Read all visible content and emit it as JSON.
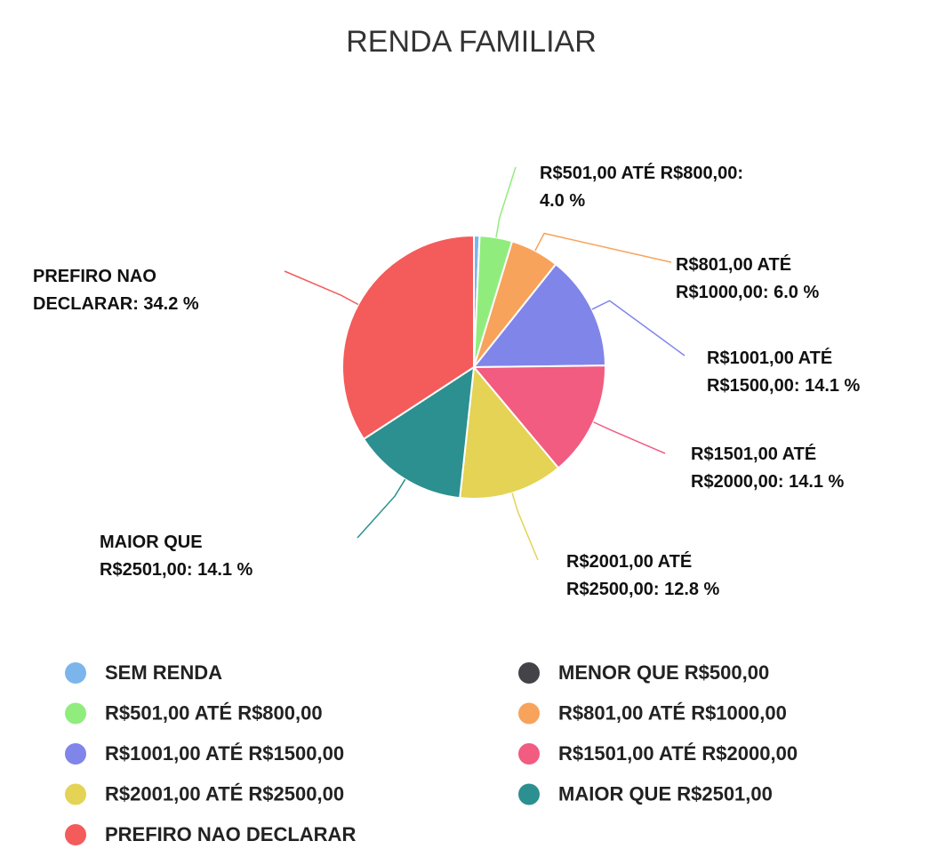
{
  "chart_data": {
    "type": "pie",
    "title": "RENDA FAMILIAR",
    "categories": [
      "SEM RENDA",
      "MENOR QUE R$500,00",
      "R$501,00 ATÉ R$800,00",
      "R$801,00 ATÉ R$1000,00",
      "R$1001,00 ATÉ R$1500,00",
      "R$1501,00 ATÉ R$2000,00",
      "R$2001,00 ATÉ R$2500,00",
      "MAIOR QUE R$2501,00",
      "PREFIRO NAO DECLARAR"
    ],
    "values": [
      0.7,
      0,
      4.0,
      6.0,
      14.1,
      14.1,
      12.8,
      14.1,
      34.2
    ],
    "value_labels": [
      null,
      null,
      "R$501,00 ATÉ R$800,00: 4.0 %",
      "R$801,00 ATÉ R$1000,00: 6.0 %",
      "R$1001,00 ATÉ R$1500,00: 14.1 %",
      "R$1501,00 ATÉ R$2000,00: 14.1 %",
      "R$2001,00 ATÉ R$2500,00: 12.8 %",
      "MAIOR QUE R$2501,00: 14.1 %",
      "PREFIRO NAO DECLARAR: 34.2 %"
    ],
    "colors": [
      "#7cb5ec",
      "#434348",
      "#90ed7d",
      "#f7a35c",
      "#8085e9",
      "#f15c80",
      "#e4d354",
      "#2b908f",
      "#f45b5b"
    ],
    "legend": "bottom"
  }
}
